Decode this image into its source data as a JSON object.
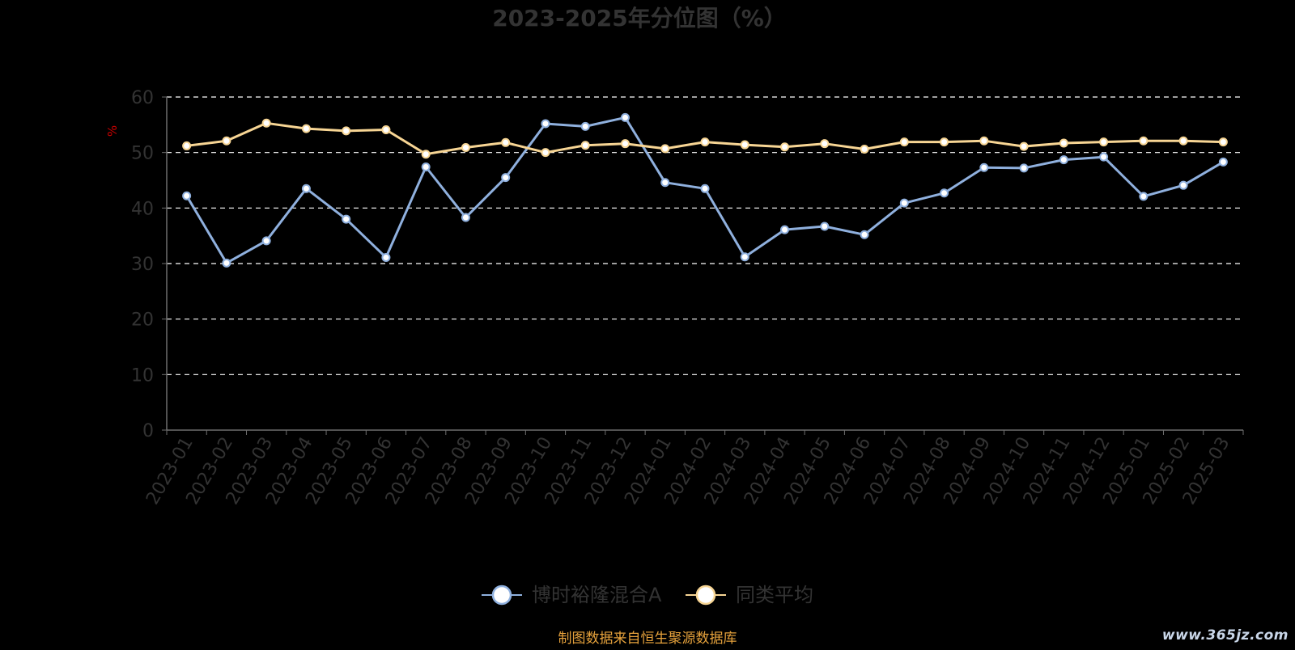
{
  "chart_data": {
    "type": "line",
    "title": "2023-2025年分位图（%）",
    "ylabel": "%",
    "xlabel": "",
    "ylim": [
      0,
      60
    ],
    "yticks": [
      0,
      10,
      20,
      30,
      40,
      50,
      60
    ],
    "grid": true,
    "legend_position": "bottom-center",
    "categories": [
      "2023-01",
      "2023-02",
      "2023-03",
      "2023-04",
      "2023-05",
      "2023-06",
      "2023-07",
      "2023-08",
      "2023-09",
      "2023-10",
      "2023-11",
      "2023-12",
      "2024-01",
      "2024-02",
      "2024-03",
      "2024-04",
      "2024-05",
      "2024-06",
      "2024-07",
      "2024-08",
      "2024-09",
      "2024-10",
      "2024-11",
      "2024-12",
      "2025-01",
      "2025-02",
      "2025-03"
    ],
    "series": [
      {
        "name": "博时裕隆混合A",
        "color": "#8fb0de",
        "values": [
          42.2,
          30.1,
          34.1,
          43.5,
          38.0,
          31.1,
          47.4,
          38.3,
          45.5,
          55.2,
          54.7,
          56.3,
          44.6,
          43.5,
          31.2,
          36.1,
          36.7,
          35.2,
          40.9,
          42.7,
          47.3,
          47.2,
          48.7,
          49.2,
          42.1,
          44.1,
          48.3
        ]
      },
      {
        "name": "同类平均",
        "color": "#f7d594",
        "values": [
          51.2,
          52.1,
          55.3,
          54.3,
          53.9,
          54.1,
          49.7,
          50.9,
          51.8,
          50.0,
          51.3,
          51.6,
          50.7,
          51.9,
          51.4,
          51.0,
          51.6,
          50.6,
          51.9,
          51.9,
          52.1,
          51.1,
          51.7,
          51.9,
          52.1,
          52.1,
          51.9
        ]
      }
    ]
  },
  "footer": {
    "source": "制图数据来自恒生聚源数据库",
    "watermark": "www.365jz.com"
  },
  "colors": {
    "background": "#000000",
    "axis": "#6e6e6e",
    "grid": "#ffffff",
    "title": "#333333",
    "tick_label": "#333333",
    "ylabel": "#cc0000",
    "source": "#e6a23c"
  }
}
